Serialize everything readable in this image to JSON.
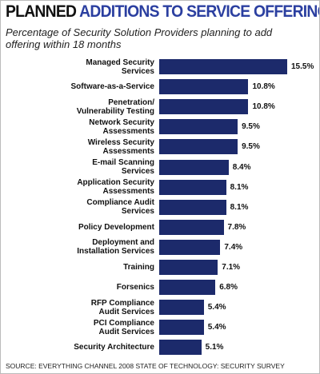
{
  "chart_data": {
    "type": "bar",
    "orientation": "horizontal",
    "title": [
      "PLANNED",
      "ADDITIONS TO SERVICE OFFERINGS"
    ],
    "subtitle": "Percentage of Security Solution Providers planning to add offering within 18 months",
    "categories": [
      "Managed Security\nServices",
      "Software-as-a-Service",
      "Penetration/\nVulnerability Testing",
      "Network Security\nAssessments",
      "Wireless Security\nAssessments",
      "E-mail Scanning\nServices",
      "Application Security\nAssessments",
      "Compliance Audit\nServices",
      "Policy Development",
      "Deployment and\nInstallation Services",
      "Training",
      "Forsenics",
      "RFP Compliance\nAudit Services",
      "PCI Compliance\nAudit Services",
      "Security Architecture"
    ],
    "values": [
      15.5,
      10.8,
      10.8,
      9.5,
      9.5,
      8.4,
      8.1,
      8.1,
      7.8,
      7.4,
      7.1,
      6.8,
      5.4,
      5.4,
      5.1
    ],
    "value_labels": [
      "15.5%",
      "10.8%",
      "10.8%",
      "9.5%",
      "9.5%",
      "8.4%",
      "8.1%",
      "8.1%",
      "7.8%",
      "7.4%",
      "7.1%",
      "6.8%",
      "5.4%",
      "5.4%",
      "5.1%"
    ],
    "color": "#1c2a6b",
    "title_colors": [
      "#111111",
      "#2b3fa0"
    ],
    "source": "SOURCE: EVERYTHING CHANNEL 2008 STATE OF TECHNOLOGY: SECURITY SURVEY"
  }
}
